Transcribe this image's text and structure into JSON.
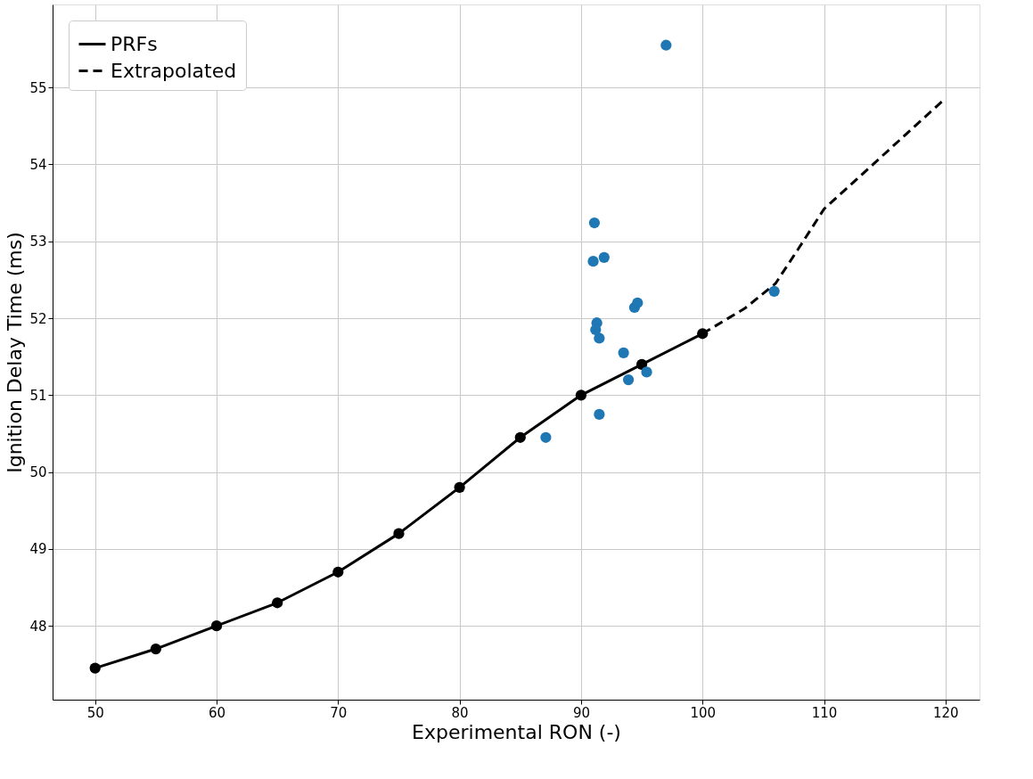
{
  "chart_data": {
    "type": "line",
    "xlabel": "Experimental RON (-)",
    "ylabel": "Ignition Delay Time (ms)",
    "xlim": [
      46.5,
      122.8
    ],
    "ylim": [
      47.04,
      56.08
    ],
    "xticks": [
      50,
      60,
      70,
      80,
      90,
      100,
      110,
      120
    ],
    "yticks": [
      48,
      49,
      50,
      51,
      52,
      53,
      54,
      55
    ],
    "grid": true,
    "legend": "top left",
    "series": [
      {
        "name": "PRFs",
        "color": "#000000",
        "marker": "circle",
        "line_style": "solid",
        "x": [
          50,
          55,
          60,
          65,
          70,
          75,
          80,
          85,
          90,
          95,
          100
        ],
        "values": [
          47.45,
          47.7,
          48.0,
          48.3,
          48.7,
          49.2,
          49.8,
          50.45,
          51.0,
          51.4,
          51.8
        ]
      },
      {
        "name": "Extrapolated",
        "color": "#000000",
        "marker": "none",
        "line_style": "dashed",
        "x": [
          100,
          103.5,
          106,
          108,
          110,
          120
        ],
        "values": [
          51.8,
          52.13,
          52.45,
          52.93,
          53.42,
          54.86
        ]
      },
      {
        "type": "scatter",
        "color": "#1f77b4",
        "marker": "circle",
        "x": [
          97.0,
          91.1,
          91.0,
          91.9,
          94.4,
          94.65,
          91.3,
          91.2,
          91.5,
          93.5,
          93.9,
          95.4,
          91.5,
          87.1,
          105.9
        ],
        "values": [
          55.55,
          53.24,
          52.74,
          52.79,
          52.14,
          52.2,
          51.94,
          51.85,
          51.74,
          51.55,
          51.2,
          51.3,
          50.75,
          50.45,
          52.35
        ]
      }
    ]
  }
}
